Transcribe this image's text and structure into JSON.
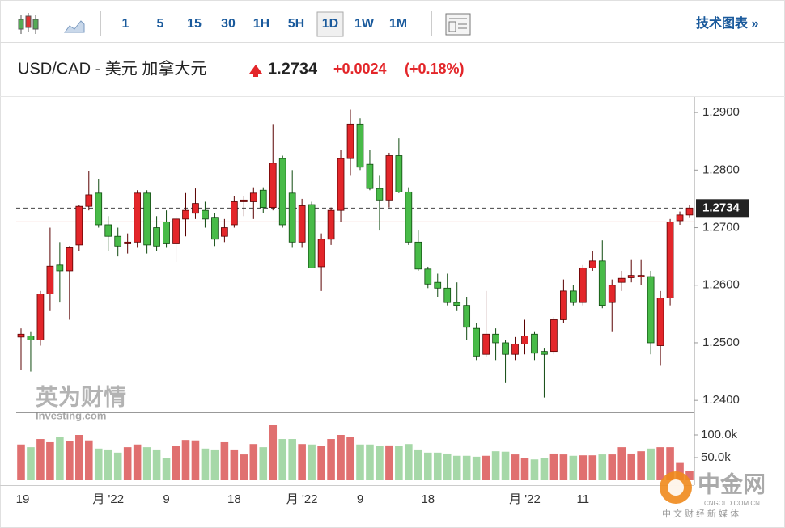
{
  "toolbar": {
    "intervals": [
      "1",
      "5",
      "15",
      "30",
      "1H",
      "5H",
      "1D",
      "1W",
      "1M"
    ],
    "active": "1D",
    "link": "技术图表 »"
  },
  "quote": {
    "name": "USD/CAD - 美元 加拿大元",
    "price": 1.2734,
    "change": "+0.0024",
    "change_percent": "(+0.18%)"
  },
  "watermarks": {
    "brand_cn": "英为财情",
    "brand_en": "Investing.com",
    "logo_cn": "中金网",
    "logo_site": "CNGOLD.COM.CN",
    "logo_slogan": "中文财经新媒体"
  },
  "chart_data": {
    "type": "candlestick",
    "categories": [
      "19",
      null,
      null,
      null,
      null,
      null,
      null,
      null,
      null,
      "月 '22",
      null,
      null,
      null,
      null,
      null,
      "9",
      null,
      null,
      null,
      null,
      null,
      null,
      "18",
      null,
      null,
      null,
      null,
      null,
      null,
      "月 '22",
      null,
      null,
      null,
      null,
      null,
      "9",
      null,
      null,
      null,
      null,
      null,
      null,
      "18",
      null,
      null,
      null,
      null,
      null,
      null,
      null,
      null,
      null,
      "月 '22",
      null,
      null,
      null,
      null,
      null,
      "11",
      null,
      null,
      null,
      null,
      null,
      null,
      null,
      null,
      null,
      null,
      null
    ],
    "open": [
      1.251,
      1.2512,
      1.2505,
      1.2585,
      1.2635,
      1.2625,
      1.267,
      1.2737,
      1.276,
      1.2705,
      1.2685,
      1.2672,
      1.2675,
      1.276,
      1.27,
      1.271,
      1.2672,
      1.2715,
      1.2725,
      1.273,
      1.2718,
      1.2685,
      1.2705,
      1.2745,
      1.2745,
      1.2765,
      1.2735,
      1.282,
      1.276,
      1.2675,
      1.274,
      1.2632,
      1.268,
      1.273,
      1.282,
      1.288,
      1.281,
      1.2768,
      1.2748,
      1.2825,
      1.2762,
      1.2675,
      1.2628,
      1.2605,
      1.2595,
      1.257,
      1.2565,
      1.2525,
      1.248,
      1.2515,
      1.25,
      1.248,
      1.2498,
      1.2515,
      1.2485,
      1.2485,
      1.254,
      1.259,
      1.257,
      1.263,
      1.2642,
      1.257,
      1.2605,
      1.2613,
      1.2615,
      1.2615,
      1.2495,
      1.2578,
      1.2712,
      1.2722
    ],
    "high": [
      1.2525,
      1.252,
      1.259,
      1.27,
      1.2675,
      1.2668,
      1.274,
      1.2798,
      1.2785,
      1.272,
      1.27,
      1.269,
      1.2765,
      1.2765,
      1.272,
      1.273,
      1.272,
      1.276,
      1.2768,
      1.2745,
      1.2725,
      1.2715,
      1.2755,
      1.2755,
      1.277,
      1.277,
      1.288,
      1.2825,
      1.28,
      1.275,
      1.2745,
      1.269,
      1.2735,
      1.2835,
      1.2905,
      1.289,
      1.2835,
      1.279,
      1.283,
      1.2855,
      1.277,
      1.2695,
      1.2632,
      1.262,
      1.262,
      1.2605,
      1.258,
      1.2535,
      1.259,
      1.2525,
      1.2505,
      1.251,
      1.254,
      1.252,
      1.249,
      1.2545,
      1.261,
      1.26,
      1.2635,
      1.266,
      1.2678,
      1.261,
      1.2625,
      1.2645,
      1.2645,
      1.2625,
      1.259,
      1.2715,
      1.2728,
      1.274
    ],
    "low": [
      1.2453,
      1.245,
      1.2495,
      1.2555,
      1.257,
      1.254,
      1.266,
      1.273,
      1.27,
      1.266,
      1.265,
      1.2655,
      1.2665,
      1.2655,
      1.266,
      1.2665,
      1.264,
      1.2685,
      1.2715,
      1.27,
      1.2668,
      1.2675,
      1.27,
      1.272,
      1.2715,
      1.2725,
      1.273,
      1.27,
      1.2665,
      1.2665,
      1.263,
      1.259,
      1.267,
      1.271,
      1.279,
      1.28,
      1.2765,
      1.2695,
      1.2735,
      1.276,
      1.267,
      1.2625,
      1.2595,
      1.258,
      1.2565,
      1.2555,
      1.2505,
      1.247,
      1.2475,
      1.247,
      1.243,
      1.247,
      1.248,
      1.247,
      1.2405,
      1.248,
      1.2535,
      1.2565,
      1.2565,
      1.2625,
      1.256,
      1.252,
      1.259,
      1.2605,
      1.26,
      1.248,
      1.246,
      1.2565,
      1.2705,
      1.2718
    ],
    "close": [
      1.2515,
      1.2505,
      1.2585,
      1.2633,
      1.2625,
      1.2665,
      1.2737,
      1.2757,
      1.2705,
      1.2685,
      1.2668,
      1.2675,
      1.276,
      1.267,
      1.2668,
      1.2672,
      1.2715,
      1.273,
      1.2742,
      1.2715,
      1.268,
      1.27,
      1.2745,
      1.2748,
      1.276,
      1.2735,
      1.2812,
      1.2705,
      1.2675,
      1.2738,
      1.263,
      1.268,
      1.273,
      1.282,
      1.288,
      1.2805,
      1.2768,
      1.2748,
      1.2825,
      1.2762,
      1.2675,
      1.2628,
      1.2602,
      1.2595,
      1.257,
      1.2565,
      1.2527,
      1.2477,
      1.2515,
      1.25,
      1.248,
      1.2498,
      1.2512,
      1.2482,
      1.248,
      1.254,
      1.259,
      1.257,
      1.263,
      1.2642,
      1.2565,
      1.26,
      1.2612,
      1.2617,
      1.2617,
      1.25,
      1.2578,
      1.271,
      1.2722,
      1.2734
    ],
    "volume": [
      79000,
      73000,
      91000,
      84000,
      96000,
      86000,
      100000,
      88000,
      70000,
      68000,
      61000,
      73000,
      79000,
      73000,
      68000,
      50000,
      75000,
      89000,
      88000,
      70000,
      68000,
      84000,
      68000,
      57000,
      80000,
      73000,
      123000,
      91000,
      91000,
      80000,
      79000,
      75000,
      91000,
      100000,
      96000,
      79000,
      79000,
      75000,
      77000,
      75000,
      80000,
      68000,
      61000,
      61000,
      59000,
      54000,
      54000,
      52000,
      54000,
      64000,
      63000,
      57000,
      50000,
      46000,
      50000,
      59000,
      57000,
      54000,
      55000,
      55000,
      57000,
      57000,
      73000,
      59000,
      64000,
      70000,
      73000,
      73000,
      40000,
      20000
    ],
    "ylim": [
      1.2382,
      1.2924
    ],
    "yticks": [
      {
        "value": 1.24,
        "label": "1.2400"
      },
      {
        "value": 1.25,
        "label": "1.2500"
      },
      {
        "value": 1.26,
        "label": "1.2600"
      },
      {
        "value": 1.27,
        "label": "1.2700"
      },
      {
        "value": 1.28,
        "label": "1.2800"
      },
      {
        "value": 1.29,
        "label": "1.2900"
      }
    ],
    "volume_ylim": [
      0,
      150000
    ],
    "volume_ticks": [
      {
        "value": 50000,
        "label": "50.0k"
      },
      {
        "value": 100000,
        "label": "100.0k"
      }
    ],
    "last_price": 1.2734,
    "prev_close": 1.271,
    "up_color": "#e3262a",
    "down_color": "#48bb48",
    "volume_up_color": "#e07070",
    "volume_down_color": "#a6d8a8"
  }
}
